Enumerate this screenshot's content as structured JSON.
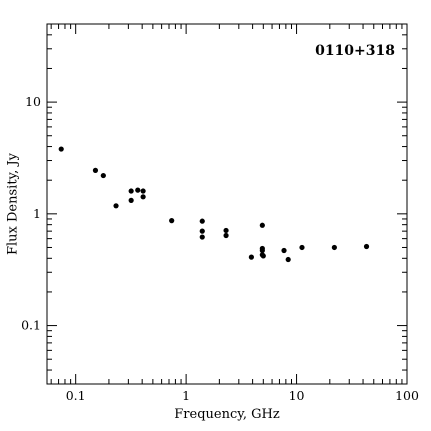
{
  "chart_data": {
    "type": "scatter",
    "title": "0110+318",
    "xlabel": "Frequency, GHz",
    "ylabel": "Flux Density, Jy",
    "x_scale": "log",
    "y_scale": "log",
    "xlim": [
      0.055,
      100
    ],
    "ylim": [
      0.03,
      50
    ],
    "x_tick_labels": [
      "0.1",
      "1",
      "10",
      "100"
    ],
    "y_tick_labels": [
      "0.1",
      "1",
      "10"
    ],
    "grid": false,
    "legend": false,
    "marker_color": "#000000",
    "points": [
      {
        "x": 0.074,
        "y": 3.8
      },
      {
        "x": 0.151,
        "y": 2.45
      },
      {
        "x": 0.178,
        "y": 2.2
      },
      {
        "x": 0.232,
        "y": 1.18
      },
      {
        "x": 0.318,
        "y": 1.6
      },
      {
        "x": 0.318,
        "y": 1.32
      },
      {
        "x": 0.365,
        "y": 1.63
      },
      {
        "x": 0.408,
        "y": 1.6
      },
      {
        "x": 0.408,
        "y": 1.42
      },
      {
        "x": 0.74,
        "y": 0.87
      },
      {
        "x": 1.4,
        "y": 0.86
      },
      {
        "x": 1.4,
        "y": 0.7
      },
      {
        "x": 1.4,
        "y": 0.62
      },
      {
        "x": 2.3,
        "y": 0.71
      },
      {
        "x": 2.3,
        "y": 0.64
      },
      {
        "x": 3.9,
        "y": 0.41
      },
      {
        "x": 4.9,
        "y": 0.79
      },
      {
        "x": 4.9,
        "y": 0.49
      },
      {
        "x": 4.9,
        "y": 0.47
      },
      {
        "x": 4.9,
        "y": 0.43
      },
      {
        "x": 5.0,
        "y": 0.42
      },
      {
        "x": 7.7,
        "y": 0.47
      },
      {
        "x": 8.4,
        "y": 0.39
      },
      {
        "x": 11.2,
        "y": 0.5
      },
      {
        "x": 22.0,
        "y": 0.5
      },
      {
        "x": 43.0,
        "y": 0.51
      }
    ]
  }
}
